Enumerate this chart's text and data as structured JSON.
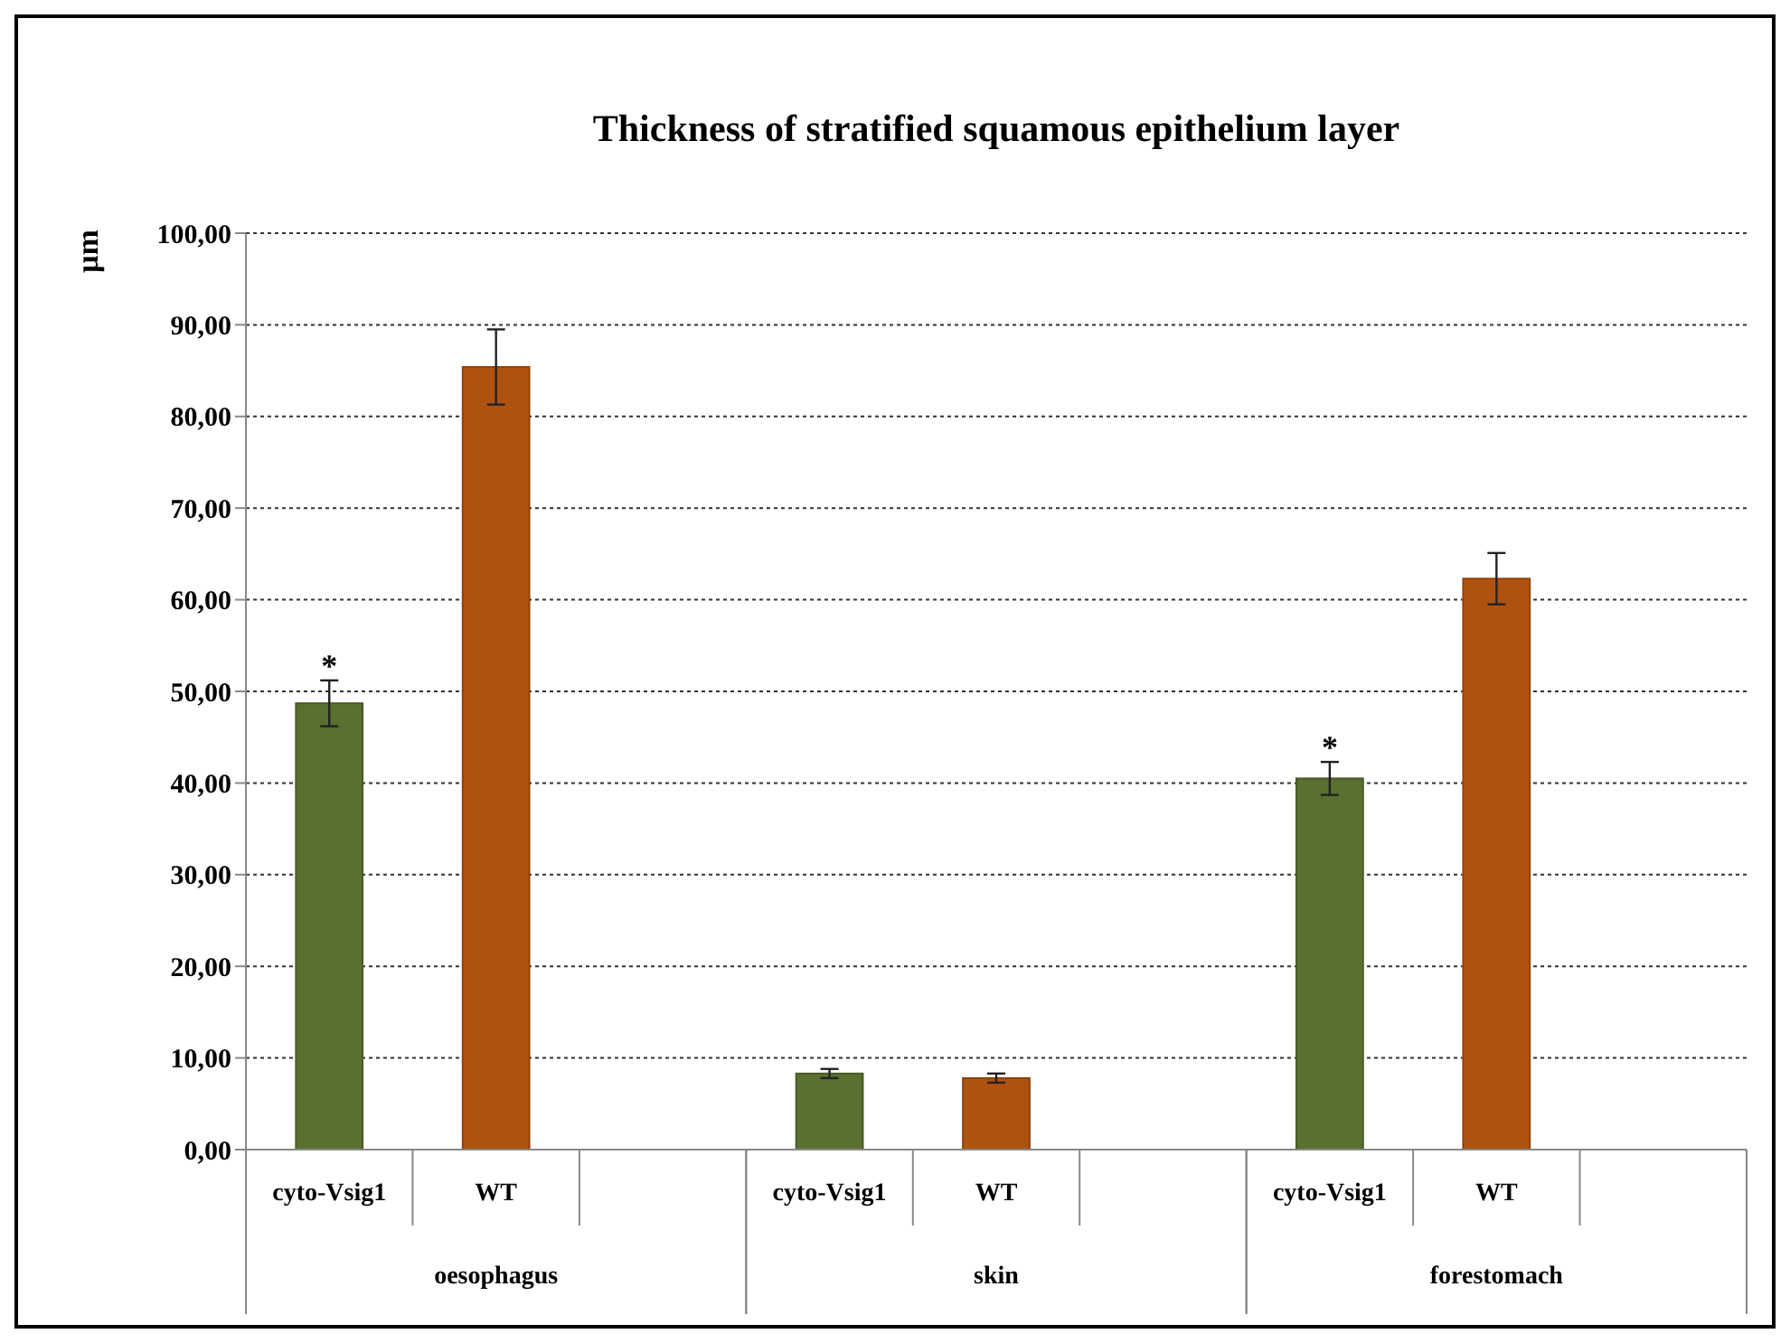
{
  "chart_data": {
    "type": "bar",
    "title": "Thickness of stratified squamous epithelium layer",
    "ylabel": "µm",
    "categories": [
      "oesophagus",
      "skin",
      "forestomach"
    ],
    "series": [
      {
        "name": "cyto-Vsig1",
        "color": "#5a7030",
        "values": [
          48.7,
          8.3,
          40.5
        ],
        "errors": [
          2.5,
          0.5,
          1.8
        ]
      },
      {
        "name": "WT",
        "color": "#b0520f",
        "values": [
          85.4,
          7.8,
          62.3
        ],
        "errors": [
          4.1,
          0.5,
          2.8
        ]
      }
    ],
    "ylim": [
      0,
      100
    ],
    "yticks": [
      {
        "value": 0,
        "label": "0,00"
      },
      {
        "value": 10,
        "label": "10,00"
      },
      {
        "value": 20,
        "label": "20,00"
      },
      {
        "value": 30,
        "label": "30,00"
      },
      {
        "value": 40,
        "label": "40,00"
      },
      {
        "value": 50,
        "label": "50,00"
      },
      {
        "value": 60,
        "label": "60,00"
      },
      {
        "value": 70,
        "label": "70,00"
      },
      {
        "value": 80,
        "label": "80,00"
      },
      {
        "value": 90,
        "label": "90,00"
      },
      {
        "value": 100,
        "label": "100,00"
      }
    ],
    "grid": "y",
    "annotations": [
      "*",
      "*"
    ]
  }
}
